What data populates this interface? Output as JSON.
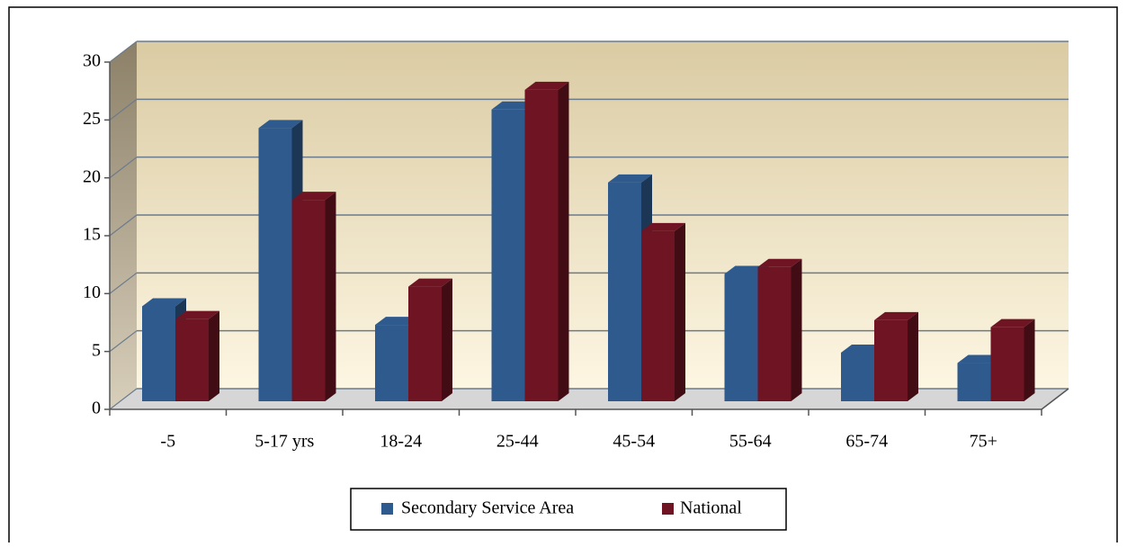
{
  "chart_data": {
    "type": "bar",
    "categories": [
      "-5",
      "5-17 yrs",
      "18-24",
      "25-44",
      "45-54",
      "55-64",
      "65-74",
      "75+"
    ],
    "series": [
      {
        "name": "Secondary Service Area",
        "color": "#2e5a8e",
        "values": [
          8.2,
          23.6,
          6.6,
          25.2,
          18.9,
          11,
          4.2,
          3.3
        ]
      },
      {
        "name": "National",
        "color": "#6e1423",
        "values": [
          7.1,
          17.4,
          9.9,
          26.9,
          14.7,
          11.6,
          7,
          6.4
        ]
      }
    ],
    "ylim": [
      0,
      30
    ],
    "yticks": [
      0,
      5,
      10,
      15,
      20,
      25,
      30
    ],
    "grid": true,
    "legend": "bottom"
  }
}
